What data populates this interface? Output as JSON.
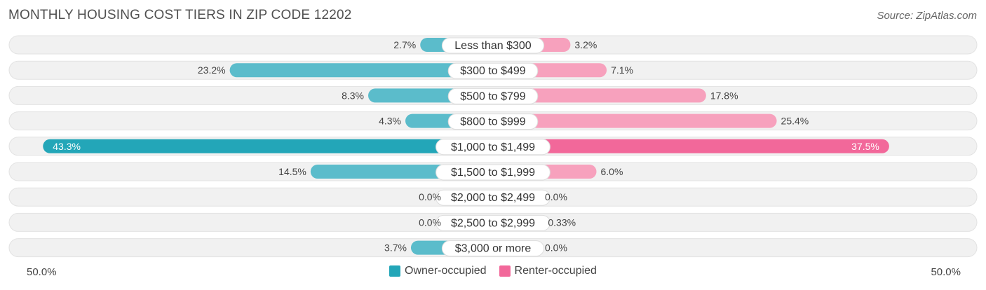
{
  "title": "MONTHLY HOUSING COST TIERS IN ZIP CODE 12202",
  "source": "Source: ZipAtlas.com",
  "colors": {
    "owner": "#5bbccb",
    "owner_strong": "#23a6b8",
    "renter": "#f7a1bd",
    "renter_strong": "#f2689a"
  },
  "chart_data": {
    "type": "bar",
    "orientation": "horizontal-diverging",
    "categories": [
      "Less than $300",
      "$300 to $499",
      "$500 to $799",
      "$800 to $999",
      "$1,000 to $1,499",
      "$1,500 to $1,999",
      "$2,000 to $2,499",
      "$2,500 to $2,999",
      "$3,000 or more"
    ],
    "series": [
      {
        "name": "Owner-occupied",
        "values": [
          2.7,
          23.2,
          8.3,
          4.3,
          43.3,
          14.5,
          0.0,
          0.0,
          3.7
        ],
        "labels": [
          "2.7%",
          "23.2%",
          "8.3%",
          "4.3%",
          "43.3%",
          "14.5%",
          "0.0%",
          "0.0%",
          "3.7%"
        ]
      },
      {
        "name": "Renter-occupied",
        "values": [
          3.2,
          7.1,
          17.8,
          25.4,
          37.5,
          6.0,
          0.0,
          0.33,
          0.0
        ],
        "labels": [
          "3.2%",
          "7.1%",
          "17.8%",
          "25.4%",
          "37.5%",
          "6.0%",
          "0.0%",
          "0.33%",
          "0.0%"
        ]
      }
    ],
    "xlim": [
      -50,
      50
    ],
    "axis_left_label": "50.0%",
    "axis_right_label": "50.0%",
    "legend_position": "bottom-center"
  }
}
